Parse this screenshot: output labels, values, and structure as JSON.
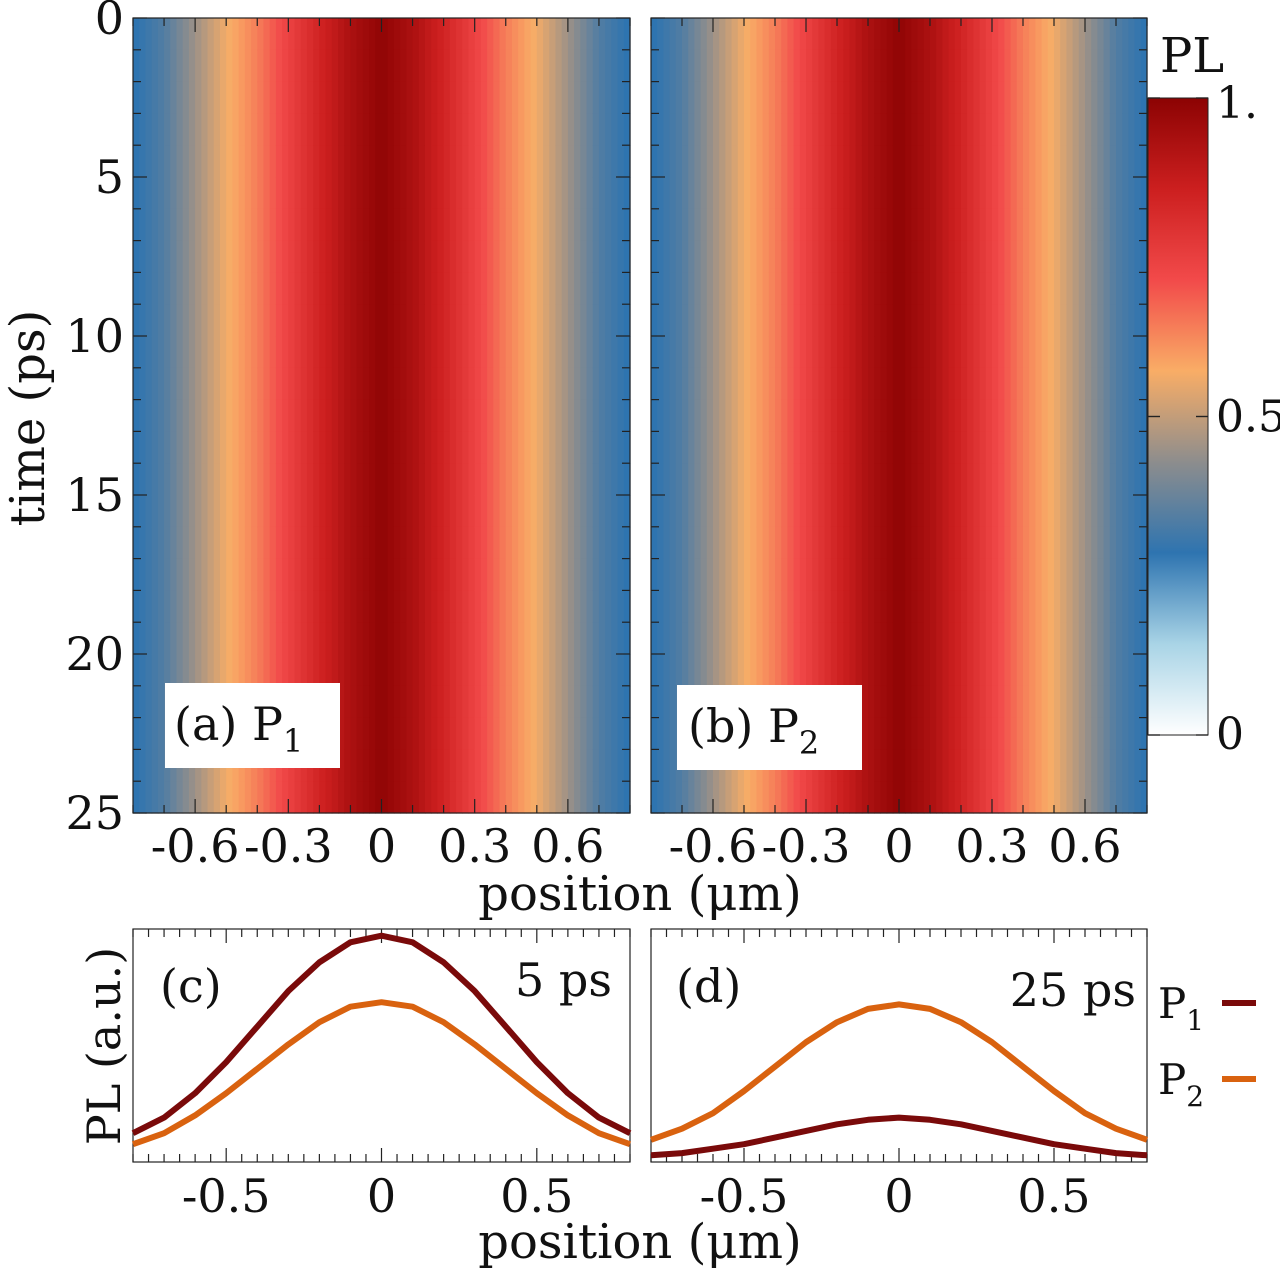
{
  "colors": {
    "p1": "#7a0a0a",
    "p2": "#d9620f",
    "colormap": [
      "#ffffff",
      "#a9d4e6",
      "#2e74b0",
      "#8d8d8d",
      "#f9ad66",
      "#f24a4a",
      "#cc1f1f",
      "#8c0303"
    ]
  },
  "chart_data": [
    {
      "type": "heatmap",
      "panel_label": "(a) P",
      "panel_sub": "1",
      "xlabel": "position (μm)",
      "ylabel": "time (ps)",
      "xlim": [
        -0.8,
        0.8
      ],
      "ylim": [
        0,
        25
      ],
      "y_reversed": true,
      "xticks": [
        -0.6,
        -0.3,
        0,
        0.3,
        0.6
      ],
      "xtick_labels": [
        "-0.6",
        "-0.3",
        "0",
        "0.3",
        "0.6"
      ],
      "yticks": [
        0,
        5,
        10,
        15,
        20,
        25
      ],
      "ytick_labels": [
        "0",
        "5",
        "10",
        "15",
        "20",
        "25"
      ],
      "profile": {
        "x": [
          -0.8,
          -0.7,
          -0.6,
          -0.5,
          -0.4,
          -0.3,
          -0.2,
          -0.1,
          0,
          0.1,
          0.2,
          0.3,
          0.4,
          0.5,
          0.6,
          0.7,
          0.8
        ],
        "pl": [
          0.28,
          0.34,
          0.45,
          0.56,
          0.64,
          0.74,
          0.84,
          0.93,
          0.99,
          0.93,
          0.84,
          0.74,
          0.64,
          0.56,
          0.45,
          0.34,
          0.28
        ]
      }
    },
    {
      "type": "heatmap",
      "panel_label": "(b) P",
      "panel_sub": "2",
      "xlabel": "position (μm)",
      "xlim": [
        -0.8,
        0.8
      ],
      "ylim": [
        0,
        25
      ],
      "y_reversed": true,
      "xticks": [
        -0.6,
        -0.3,
        0,
        0.3,
        0.6
      ],
      "xtick_labels": [
        "-0.6",
        "-0.3",
        "0",
        "0.3",
        "0.6"
      ],
      "profile": {
        "x": [
          -0.8,
          -0.7,
          -0.6,
          -0.5,
          -0.4,
          -0.3,
          -0.2,
          -0.1,
          0,
          0.1,
          0.2,
          0.3,
          0.4,
          0.5,
          0.6,
          0.7,
          0.8
        ],
        "pl": [
          0.28,
          0.34,
          0.45,
          0.56,
          0.64,
          0.74,
          0.84,
          0.93,
          0.99,
          0.93,
          0.84,
          0.74,
          0.64,
          0.56,
          0.45,
          0.34,
          0.28
        ]
      }
    },
    {
      "type": "line",
      "panel_label": "(c)",
      "annotation": "5 ps",
      "xlabel": "position (μm)",
      "ylabel": "PL (a.u.)",
      "xlim": [
        -0.8,
        0.8
      ],
      "ylim": [
        0,
        1.05
      ],
      "xticks": [
        -0.5,
        0,
        0.5
      ],
      "xtick_labels": [
        "-0.5",
        "0",
        "0.5"
      ],
      "x": [
        -0.8,
        -0.7,
        -0.6,
        -0.5,
        -0.4,
        -0.3,
        -0.2,
        -0.1,
        0,
        0.1,
        0.2,
        0.3,
        0.4,
        0.5,
        0.6,
        0.7,
        0.8
      ],
      "series": [
        {
          "name": "P1",
          "values": [
            0.13,
            0.2,
            0.31,
            0.45,
            0.61,
            0.77,
            0.9,
            0.99,
            1.02,
            0.99,
            0.9,
            0.77,
            0.61,
            0.45,
            0.31,
            0.2,
            0.13
          ]
        },
        {
          "name": "P2",
          "values": [
            0.08,
            0.13,
            0.21,
            0.31,
            0.42,
            0.53,
            0.63,
            0.7,
            0.72,
            0.7,
            0.63,
            0.53,
            0.42,
            0.31,
            0.21,
            0.13,
            0.08
          ]
        }
      ]
    },
    {
      "type": "line",
      "panel_label": "(d)",
      "annotation": "25 ps",
      "xlabel": "position (μm)",
      "xlim": [
        -0.8,
        0.8
      ],
      "ylim": [
        0,
        1.05
      ],
      "xticks": [
        -0.5,
        0,
        0.5
      ],
      "xtick_labels": [
        "-0.5",
        "0",
        "0.5"
      ],
      "x": [
        -0.8,
        -0.7,
        -0.6,
        -0.5,
        -0.4,
        -0.3,
        -0.2,
        -0.1,
        0,
        0.1,
        0.2,
        0.3,
        0.4,
        0.5,
        0.6,
        0.7,
        0.8
      ],
      "series": [
        {
          "name": "P1",
          "values": [
            0.03,
            0.04,
            0.06,
            0.08,
            0.11,
            0.14,
            0.17,
            0.19,
            0.2,
            0.19,
            0.17,
            0.14,
            0.11,
            0.08,
            0.06,
            0.04,
            0.03
          ]
        },
        {
          "name": "P2",
          "values": [
            0.1,
            0.15,
            0.22,
            0.32,
            0.43,
            0.54,
            0.63,
            0.69,
            0.71,
            0.69,
            0.63,
            0.54,
            0.43,
            0.32,
            0.22,
            0.15,
            0.1
          ]
        }
      ]
    }
  ],
  "colorbar": {
    "title": "PL",
    "min": 0,
    "max": 1,
    "ticks": [
      0,
      0.5,
      1
    ],
    "tick_labels": [
      "0",
      "0.5",
      "1."
    ]
  },
  "legend": {
    "items": [
      {
        "label": "P",
        "sub": "1"
      },
      {
        "label": "P",
        "sub": "2"
      }
    ]
  }
}
